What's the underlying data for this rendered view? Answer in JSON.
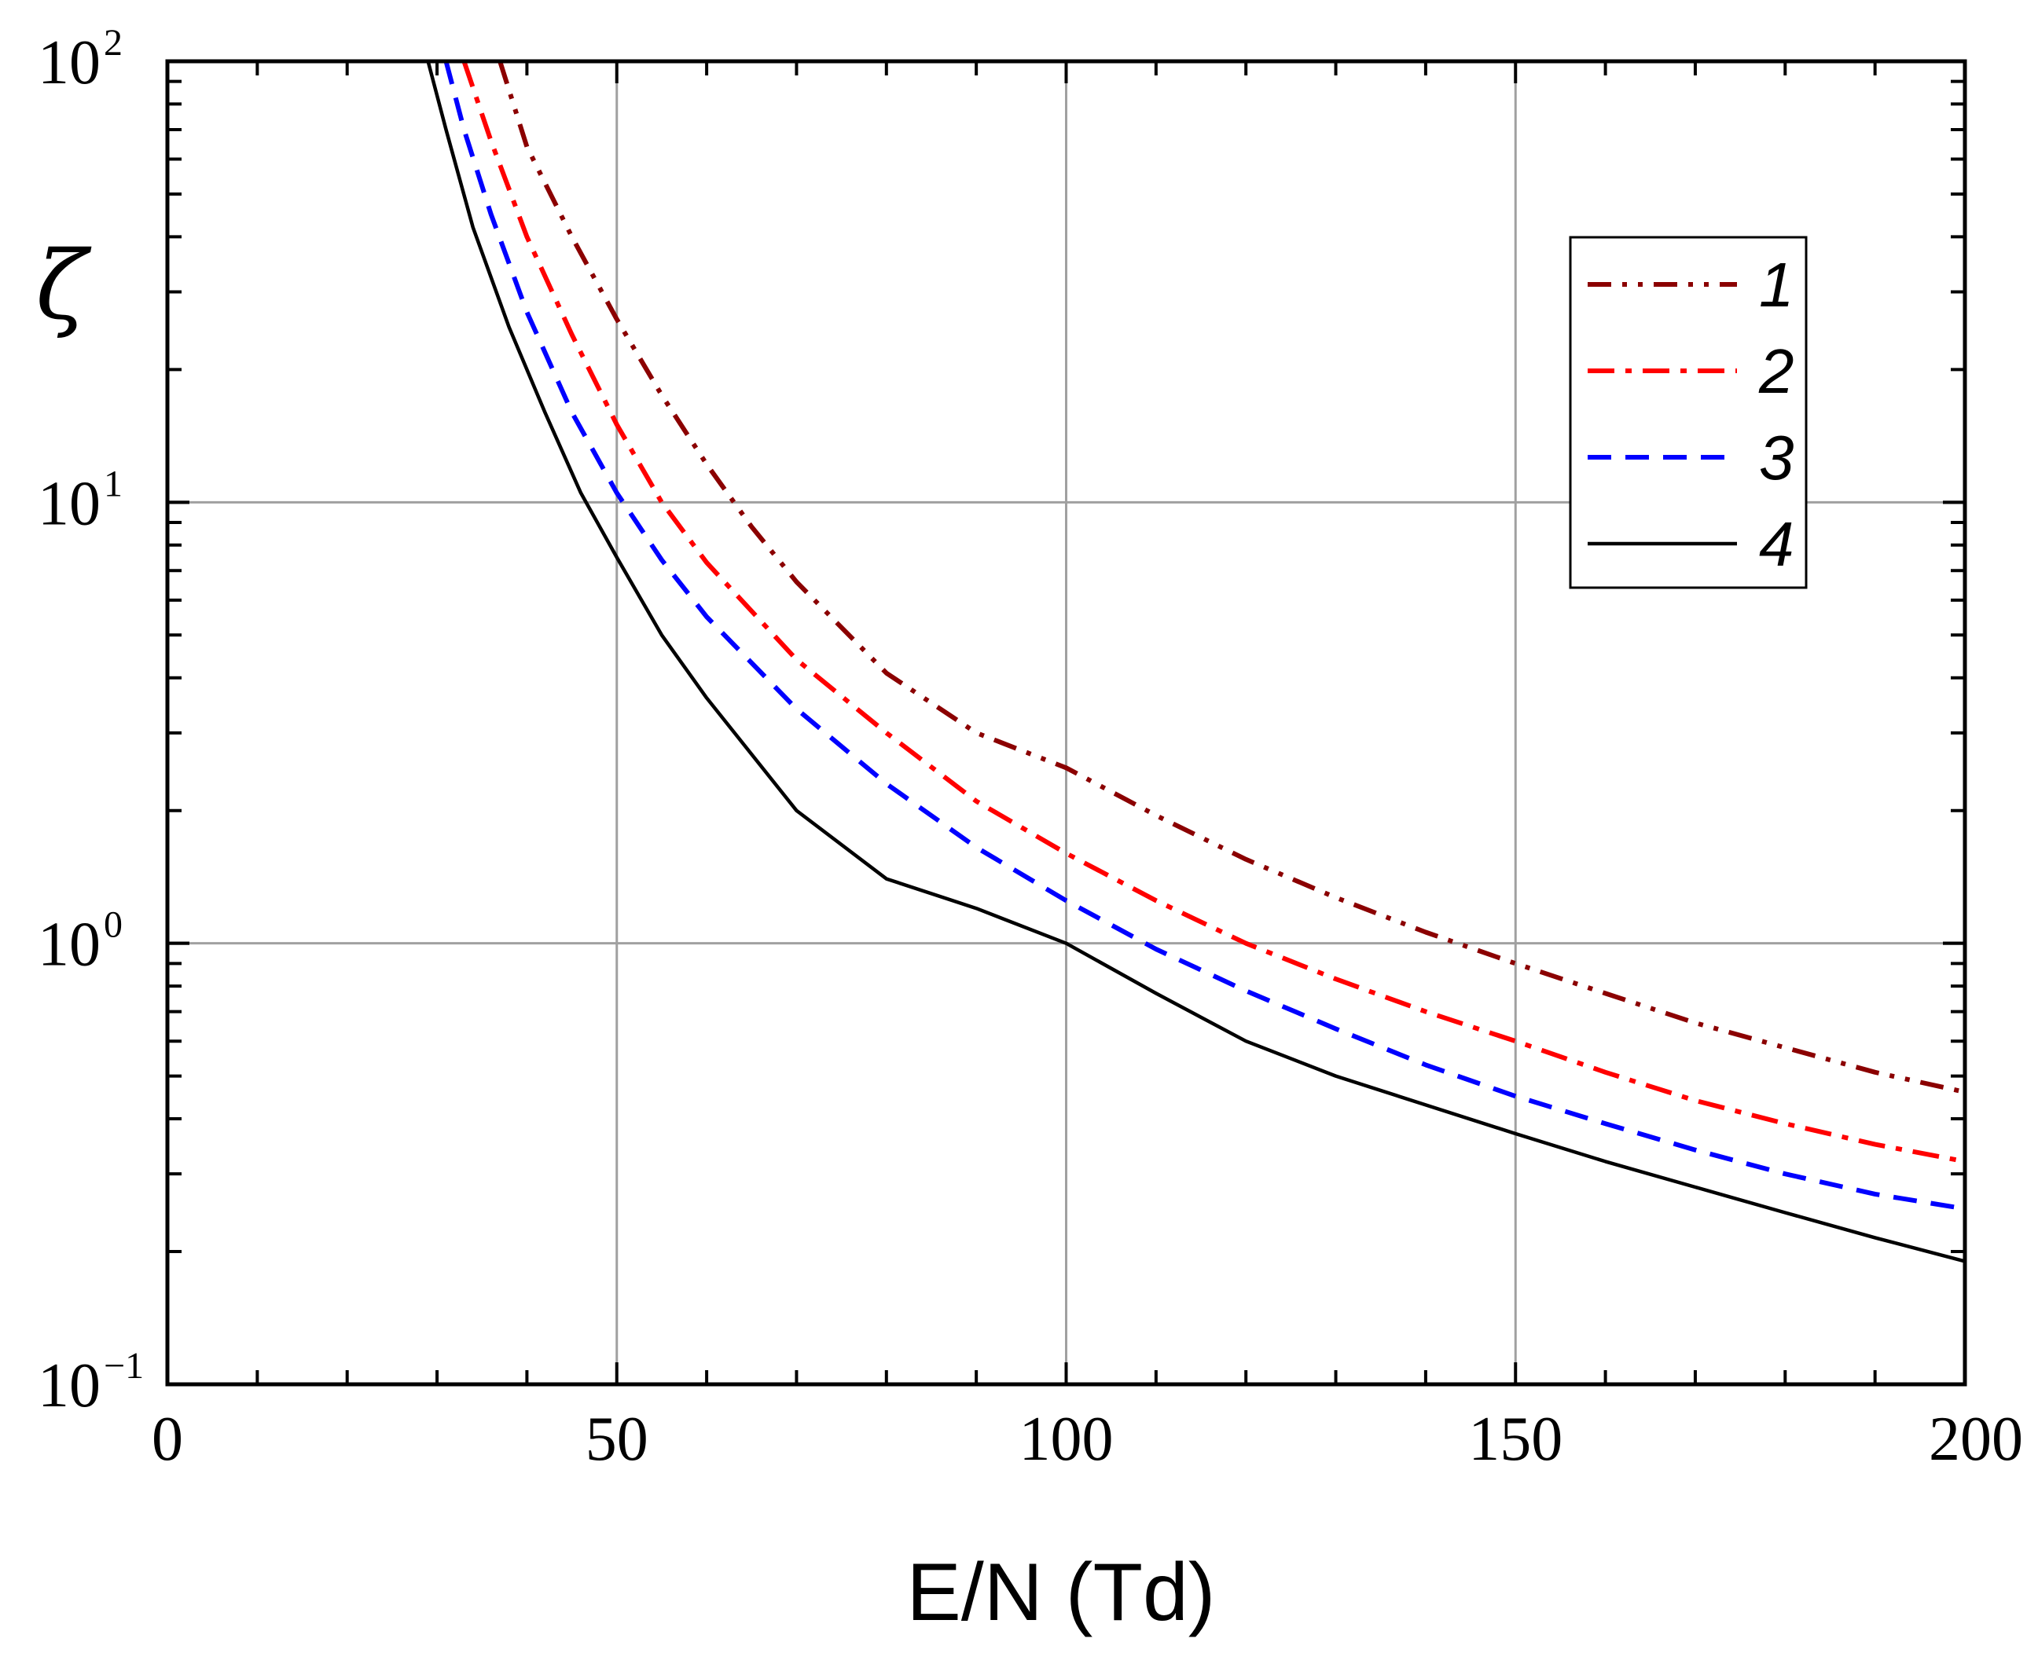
{
  "chart_data": {
    "type": "line",
    "title": "",
    "xlabel": "E/N (Td)",
    "ylabel": "ζ",
    "xlim": [
      0,
      200
    ],
    "ylim": [
      0.1,
      100
    ],
    "yscale": "log",
    "grid": true,
    "legend_position": "top-right",
    "x_ticks": [
      "0",
      "50",
      "100",
      "150",
      "200"
    ],
    "y_ticks": [
      {
        "base": "10",
        "exp": "2",
        "value": 100
      },
      {
        "base": "10",
        "exp": "1",
        "value": 10
      },
      {
        "base": "10",
        "exp": "0",
        "value": 1
      },
      {
        "base": "10",
        "exp": "−1",
        "value": 0.1
      }
    ],
    "series": [
      {
        "name": "1",
        "color": "#8b0000",
        "style": "dash-dot-dot",
        "x": [
          37,
          40,
          45,
          50,
          55,
          60,
          65,
          70,
          80,
          90,
          100,
          110,
          120,
          130,
          140,
          150,
          160,
          170,
          180,
          190,
          200
        ],
        "y": [
          100,
          64,
          40,
          26,
          17.5,
          12.2,
          8.8,
          6.6,
          4.1,
          3.0,
          2.5,
          1.95,
          1.55,
          1.27,
          1.06,
          0.9,
          0.77,
          0.66,
          0.58,
          0.51,
          0.46
        ]
      },
      {
        "name": "2",
        "color": "#ff0000",
        "style": "dash-dot",
        "x": [
          33,
          36,
          40,
          45,
          50,
          55,
          60,
          70,
          80,
          90,
          100,
          110,
          120,
          130,
          140,
          150,
          160,
          170,
          180,
          190,
          200
        ],
        "y": [
          100,
          66,
          40,
          24,
          15,
          10,
          7.3,
          4.4,
          3.0,
          2.1,
          1.6,
          1.25,
          1.0,
          0.83,
          0.7,
          0.6,
          0.51,
          0.44,
          0.39,
          0.35,
          0.32
        ]
      },
      {
        "name": "3",
        "color": "#0000ff",
        "style": "dashed",
        "x": [
          31,
          33,
          36,
          40,
          45,
          50,
          55,
          60,
          70,
          80,
          90,
          100,
          110,
          120,
          130,
          140,
          150,
          160,
          170,
          180,
          190,
          200
        ],
        "y": [
          100,
          70,
          45,
          27,
          16,
          10.5,
          7.4,
          5.5,
          3.4,
          2.3,
          1.65,
          1.25,
          0.97,
          0.78,
          0.64,
          0.53,
          0.45,
          0.39,
          0.34,
          0.3,
          0.27,
          0.25
        ]
      },
      {
        "name": "4",
        "color": "#000000",
        "style": "solid",
        "x": [
          29,
          31,
          34,
          38,
          42,
          46,
          50,
          55,
          60,
          70,
          80,
          90,
          100,
          110,
          120,
          130,
          140,
          150,
          160,
          170,
          180,
          190,
          200
        ],
        "y": [
          100,
          70,
          42,
          25,
          16,
          10.5,
          7.5,
          5.0,
          3.6,
          2.0,
          1.4,
          1.2,
          1.0,
          0.77,
          0.6,
          0.5,
          0.43,
          0.37,
          0.32,
          0.28,
          0.245,
          0.215,
          0.19
        ]
      }
    ]
  }
}
